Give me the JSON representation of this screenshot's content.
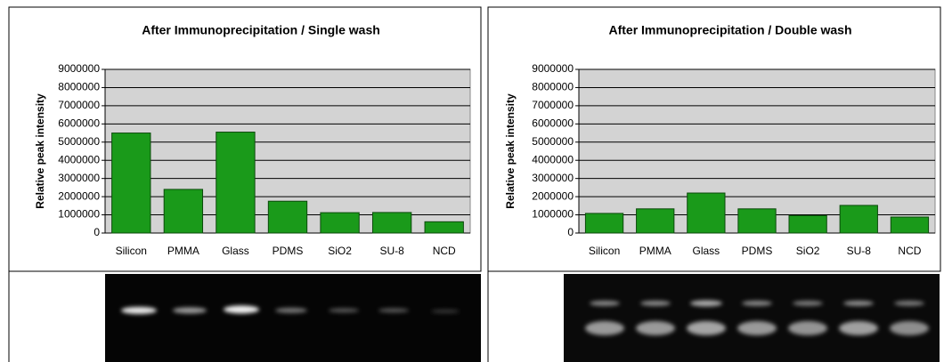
{
  "chart_data": [
    {
      "type": "bar",
      "title": "After Immunoprecipitation / Single wash",
      "y_label": "Relative peak intensity",
      "categories": [
        "Silicon",
        "PMMA",
        "Glass",
        "PDMS",
        "SiO2",
        "SU-8",
        "NCD"
      ],
      "values": [
        5500000,
        2400000,
        5550000,
        1750000,
        1120000,
        1130000,
        620000
      ],
      "color": "#1a9a1a",
      "ylim": [
        0,
        9000000
      ],
      "yticks": [
        0,
        1000000,
        2000000,
        3000000,
        4000000,
        5000000,
        6000000,
        7000000,
        8000000,
        9000000
      ],
      "grid": true
    },
    {
      "type": "bar",
      "title": "After Immunoprecipitation / Double wash",
      "y_label": "Relative peak intensity",
      "categories": [
        "Silicon",
        "PMMA",
        "Glass",
        "PDMS",
        "SiO2",
        "SU-8",
        "NCD"
      ],
      "values": [
        1080000,
        1330000,
        2200000,
        1330000,
        960000,
        1520000,
        880000
      ],
      "color": "#1a9a1a",
      "ylim": [
        0,
        9000000
      ],
      "yticks": [
        0,
        1000000,
        2000000,
        3000000,
        4000000,
        5000000,
        6000000,
        7000000,
        8000000,
        9000000
      ],
      "grid": true
    }
  ]
}
